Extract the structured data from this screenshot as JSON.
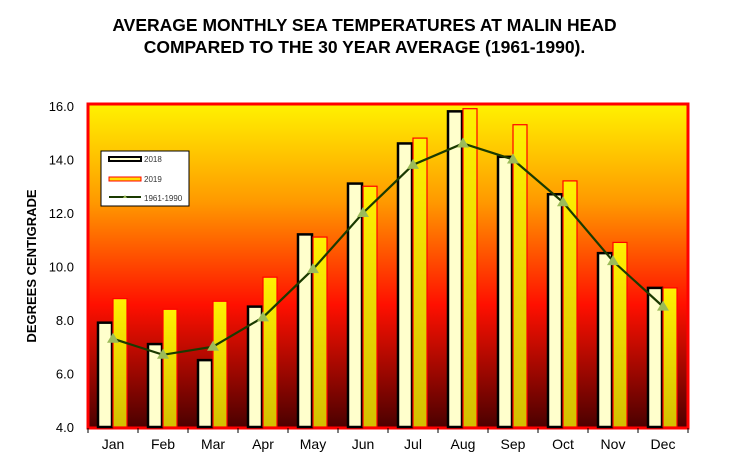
{
  "chart_data": {
    "type": "bar",
    "title_line1": "AVERAGE MONTHLY SEA TEMPERATURES AT MALIN HEAD",
    "title_line2": "COMPARED TO THE 30 YEAR AVERAGE (1961-1990).",
    "xlabel": "",
    "ylabel": "DEGREES CENTIGRADE",
    "ylim": [
      4.0,
      16.0
    ],
    "yticks": [
      "4.0",
      "6.0",
      "8.0",
      "10.0",
      "12.0",
      "14.0",
      "16.0"
    ],
    "categories": [
      "Jan",
      "Feb",
      "Mar",
      "Apr",
      "May",
      "Jun",
      "Jul",
      "Aug",
      "Sep",
      "Oct",
      "Nov",
      "Dec"
    ],
    "grid": false,
    "legend_placement": "top-left",
    "series": [
      {
        "name": "2018",
        "type": "bar",
        "fill": "#FFFFCC",
        "stroke": "#000000",
        "values": [
          7.9,
          7.1,
          6.5,
          8.5,
          11.2,
          13.1,
          14.6,
          15.8,
          14.1,
          12.7,
          10.5,
          9.2
        ]
      },
      {
        "name": "2019",
        "type": "bar",
        "fill": "#FFD700",
        "stroke": "#FF0000",
        "values": [
          8.8,
          8.4,
          8.7,
          9.6,
          11.1,
          13.0,
          14.8,
          15.9,
          15.3,
          13.2,
          10.9,
          9.2
        ]
      },
      {
        "name": "1961-1990",
        "type": "line",
        "stroke": "#1A3A00",
        "marker": "#9BBB59",
        "values": [
          7.3,
          6.7,
          7.0,
          8.1,
          9.9,
          12.0,
          13.8,
          14.6,
          14.0,
          12.4,
          10.2,
          8.5
        ]
      }
    ],
    "colors": {
      "border": "#FF0000",
      "bg_top": "#FFF000",
      "bg_mid": "#FF1000",
      "bg_bottom": "#4A0000"
    }
  }
}
